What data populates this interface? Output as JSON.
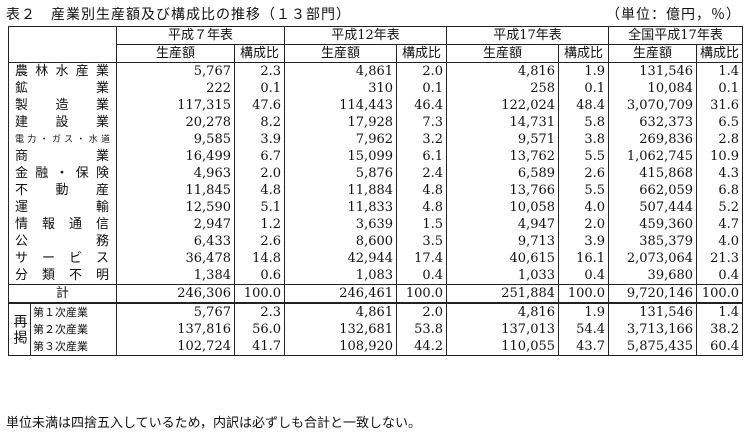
{
  "title": "表２　産業別生産額及び構成比の推移（１３部門）",
  "unit": "（単位：億円，％）",
  "periods": [
    "平成７年表",
    "平成12年表",
    "平成17年表",
    "全国平成17年表"
  ],
  "col_headers": {
    "amount": "生産額",
    "ratio": "構成比"
  },
  "rows": [
    {
      "label": "農林水産業",
      "v": [
        "5,767",
        "2.3",
        "4,861",
        "2.0",
        "4,816",
        "1.9",
        "131,546",
        "1.4"
      ]
    },
    {
      "label": "鉱　　　業",
      "v": [
        "222",
        "0.1",
        "310",
        "0.1",
        "258",
        "0.1",
        "10,084",
        "0.1"
      ]
    },
    {
      "label": "製　造　業",
      "v": [
        "117,315",
        "47.6",
        "114,443",
        "46.4",
        "122,024",
        "48.4",
        "3,070,709",
        "31.6"
      ]
    },
    {
      "label": "建　設　業",
      "v": [
        "20,278",
        "8.2",
        "17,928",
        "7.3",
        "14,731",
        "5.8",
        "632,373",
        "6.5"
      ]
    },
    {
      "label": "電力・ガス・水道",
      "small": true,
      "v": [
        "9,585",
        "3.9",
        "7,962",
        "3.2",
        "9,571",
        "3.8",
        "269,836",
        "2.8"
      ]
    },
    {
      "label": "商　　　業",
      "v": [
        "16,499",
        "6.7",
        "15,099",
        "6.1",
        "13,762",
        "5.5",
        "1,062,745",
        "10.9"
      ]
    },
    {
      "label": "金融・保険",
      "v": [
        "4,963",
        "2.0",
        "5,876",
        "2.4",
        "6,589",
        "2.6",
        "415,868",
        "4.3"
      ]
    },
    {
      "label": "不　動　産",
      "v": [
        "11,845",
        "4.8",
        "11,884",
        "4.8",
        "13,766",
        "5.5",
        "662,059",
        "6.8"
      ]
    },
    {
      "label": "運　　　輸",
      "v": [
        "12,590",
        "5.1",
        "11,833",
        "4.8",
        "10,058",
        "4.0",
        "507,444",
        "5.2"
      ]
    },
    {
      "label": "情報通信",
      "v": [
        "2,947",
        "1.2",
        "3,639",
        "1.5",
        "4,947",
        "2.0",
        "459,360",
        "4.7"
      ]
    },
    {
      "label": "公　　　務",
      "v": [
        "6,433",
        "2.6",
        "8,600",
        "3.5",
        "9,713",
        "3.9",
        "385,379",
        "4.0"
      ]
    },
    {
      "label": "サービス",
      "v": [
        "36,478",
        "14.8",
        "42,944",
        "17.4",
        "40,615",
        "16.1",
        "2,073,064",
        "21.3"
      ]
    },
    {
      "label": "分類不明",
      "v": [
        "1,384",
        "0.6",
        "1,083",
        "0.4",
        "1,033",
        "0.4",
        "39,680",
        "0.4"
      ]
    }
  ],
  "total": {
    "label": "計",
    "v": [
      "246,306",
      "100.0",
      "246,461",
      "100.0",
      "251,884",
      "100.0",
      "9,720,146",
      "100.0"
    ]
  },
  "regroup_label": "再掲",
  "regroup": [
    {
      "label": "第１次産業",
      "v": [
        "5,767",
        "2.3",
        "4,861",
        "2.0",
        "4,816",
        "1.9",
        "131,546",
        "1.4"
      ]
    },
    {
      "label": "第２次産業",
      "v": [
        "137,816",
        "56.0",
        "132,681",
        "53.8",
        "137,013",
        "54.4",
        "3,713,166",
        "38.2"
      ]
    },
    {
      "label": "第３次産業",
      "v": [
        "102,724",
        "41.7",
        "108,920",
        "44.2",
        "110,055",
        "43.7",
        "5,875,435",
        "60.4"
      ]
    }
  ],
  "footnote": "単位未満は四捨五入しているため，内訳は必ずしも合計と一致しない。"
}
